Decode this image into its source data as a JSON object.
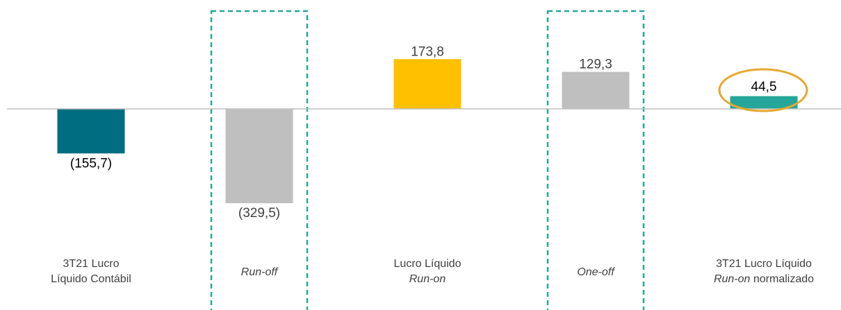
{
  "chart_data": {
    "type": "bar",
    "categories": [
      {
        "line1": "3T21 Lucro",
        "line1_italic": "",
        "line1_rest": "",
        "line2": "Líquido Contábil",
        "line2_italic": "",
        "line2_rest": ""
      },
      {
        "line1": "",
        "line1_italic": "Run-off",
        "line1_rest": "",
        "line2": "",
        "line2_italic": "",
        "line2_rest": ""
      },
      {
        "line1": "Lucro Líquido",
        "line1_italic": "",
        "line1_rest": "",
        "line2": "",
        "line2_italic": "Run-on",
        "line2_rest": ""
      },
      {
        "line1": "",
        "line1_italic": "One-off",
        "line1_rest": "",
        "line2": "",
        "line2_italic": "",
        "line2_rest": ""
      },
      {
        "line1": "3T21 Lucro Líquido",
        "line1_italic": "",
        "line1_rest": "",
        "line2": "",
        "line2_italic": "Run-on",
        "line2_rest": " normalizado"
      }
    ],
    "values": [
      -155.7,
      -329.5,
      173.8,
      129.3,
      44.5
    ],
    "labels": [
      "(155,7)",
      "(329,5)",
      "173,8",
      "129,3",
      "44,5"
    ],
    "colors": [
      "#006e80",
      "#bfbfbf",
      "#ffc000",
      "#bfbfbf",
      "#26a69a"
    ],
    "highlighted_boxes": [
      1,
      3
    ],
    "highlighted_value": 4,
    "box_color": "#26a69a",
    "circle_color": "#e6a82c",
    "baseline_color": "#bfbfbf"
  }
}
